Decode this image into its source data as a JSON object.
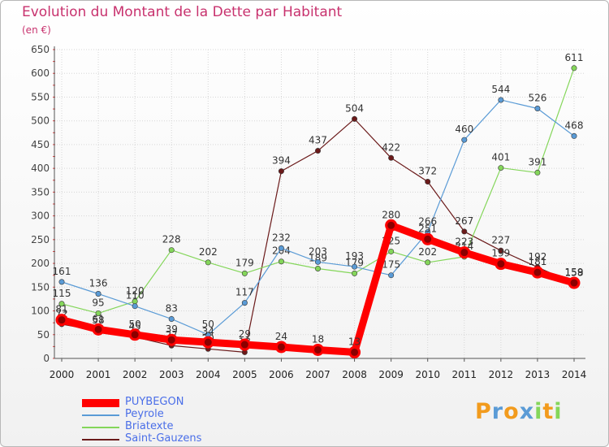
{
  "chart_data": {
    "type": "line",
    "title": "Evolution du Montant de la Dette par Habitant",
    "unit_label": "(en €)",
    "xlabel": "",
    "ylabel": "",
    "ylim": [
      0,
      650
    ],
    "yticks": [
      0,
      50,
      100,
      150,
      200,
      250,
      300,
      350,
      400,
      450,
      500,
      550,
      600,
      650
    ],
    "categories": [
      "2000",
      "2001",
      "2002",
      "2003",
      "2004",
      "2005",
      "2006",
      "2007",
      "2008",
      "2009",
      "2010",
      "2011",
      "2012",
      "2013",
      "2014"
    ],
    "series": [
      {
        "name": "Saint-Gauzens",
        "color": "#6b1a1a",
        "values": [
          72,
          58,
          45,
          27,
          20,
          13,
          394,
          437,
          504,
          422,
          372,
          267,
          227,
          192,
          158
        ]
      },
      {
        "name": "Briatexte",
        "color": "#84d65a",
        "values": [
          115,
          95,
          120,
          228,
          202,
          179,
          204,
          189,
          179,
          225,
          202,
          214,
          401,
          391,
          611
        ]
      },
      {
        "name": "Peyrole",
        "color": "#5a9bd6",
        "values": [
          161,
          136,
          110,
          83,
          50,
          117,
          232,
          203,
          193,
          175,
          266,
          460,
          544,
          526,
          468
        ]
      },
      {
        "name": "PUYBEGON",
        "color": "#ff0000",
        "values": [
          81,
          61,
          50,
          39,
          34,
          29,
          24,
          18,
          13,
          280,
          251,
          223,
          199,
          181,
          159
        ]
      }
    ],
    "legend": [
      "PUYBEGON",
      "Peyrole",
      "Briatexte",
      "Saint-Gauzens"
    ]
  },
  "logo": {
    "letters": [
      "P",
      "r",
      "o",
      "x",
      "i",
      "t",
      "i"
    ],
    "colors": [
      "#f29b1d",
      "#5a9bd6",
      "#f29b1d",
      "#5a9bd6",
      "#84d65a",
      "#f29b1d",
      "#84d65a"
    ]
  }
}
